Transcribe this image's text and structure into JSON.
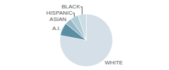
{
  "chart_data": {
    "type": "pie",
    "categories": [
      "WHITE",
      "A.I.",
      "ASIAN",
      "HISPANIC",
      "BLACK"
    ],
    "values": [
      78,
      8,
      4,
      5,
      5
    ],
    "colors": [
      "#d4dfe8",
      "#5a8fa3",
      "#96b8c8",
      "#b0ccd6",
      "#ccdce4"
    ]
  }
}
